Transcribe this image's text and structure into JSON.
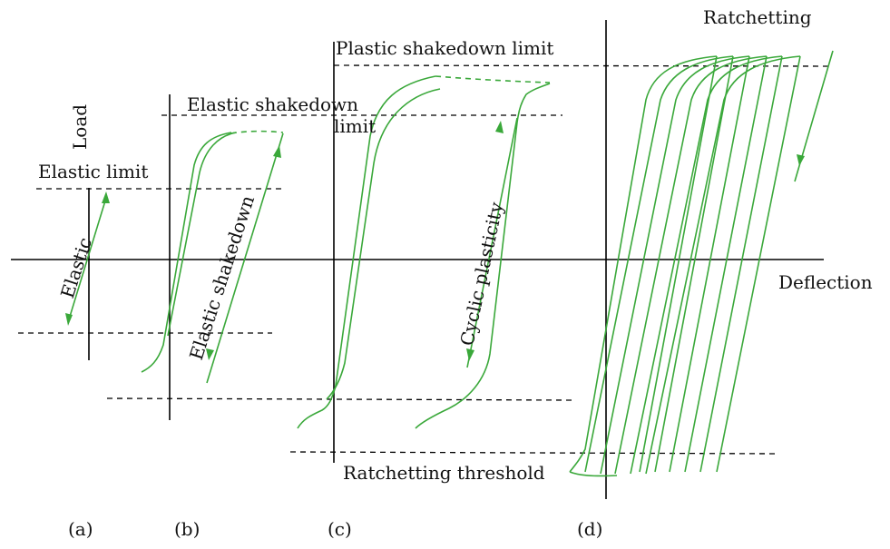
{
  "axes": {
    "load_label": "Load",
    "deflection_label": "Deflection"
  },
  "limits": {
    "elastic_limit": "Elastic limit",
    "elastic_shakedown_limit_line1": "Elastic shakedown",
    "elastic_shakedown_limit_line2": "limit",
    "plastic_shakedown_limit": "Plastic shakedown limit",
    "ratchetting_threshold": "Ratchetting threshold"
  },
  "regimes": {
    "elastic": "Elastic",
    "elastic_shakedown": "Elastic shakedown",
    "cyclic_plasticity": "Cyclic plasticity",
    "ratchetting": "Ratchetting"
  },
  "panels": {
    "a": "(a)",
    "b": "(b)",
    "c": "(c)",
    "d": "(d)"
  },
  "colors": {
    "curve": "#3aa83a",
    "axis": "#000000"
  }
}
